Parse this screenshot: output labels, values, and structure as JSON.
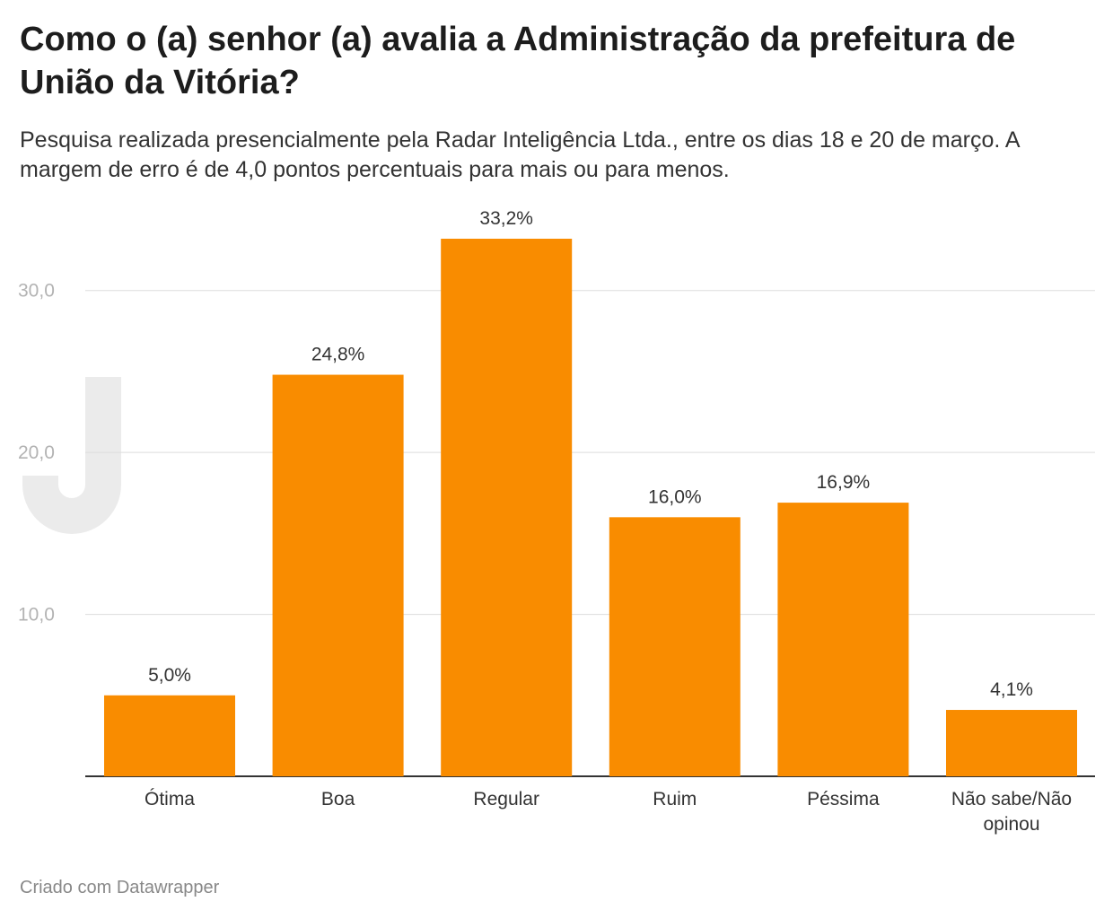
{
  "title": "Como o (a) senhor (a) avalia a Administração da prefeitura de União da Vitória?",
  "subtitle": "Pesquisa realizada presencialmente pela Radar Inteligência Ltda., entre os dias 18 e 20 de março. A margem de erro é de 4,0 pontos percentuais para mais ou para menos.",
  "credit": "Criado com Datawrapper",
  "colors": {
    "bar": "#f98c00",
    "grid": "#dddddd",
    "axis": "#333333"
  },
  "chart_data": {
    "type": "bar",
    "categories": [
      "Ótima",
      "Boa",
      "Regular",
      "Ruim",
      "Péssima",
      "Não sabe/Não opinou"
    ],
    "category_lines": [
      [
        "Ótima"
      ],
      [
        "Boa"
      ],
      [
        "Regular"
      ],
      [
        "Ruim"
      ],
      [
        "Péssima"
      ],
      [
        "Não sabe/Não",
        "opinou"
      ]
    ],
    "values": [
      5.0,
      24.8,
      33.2,
      16.0,
      16.9,
      4.1
    ],
    "value_labels": [
      "5,0%",
      "24,8%",
      "33,2%",
      "16,0%",
      "16,9%",
      "4,1%"
    ],
    "yticks": [
      10,
      20,
      30
    ],
    "ytick_labels": [
      "10,0",
      "20,0",
      "30,0"
    ],
    "ylim": [
      0,
      33.2
    ],
    "grid": true,
    "legend": "none"
  }
}
